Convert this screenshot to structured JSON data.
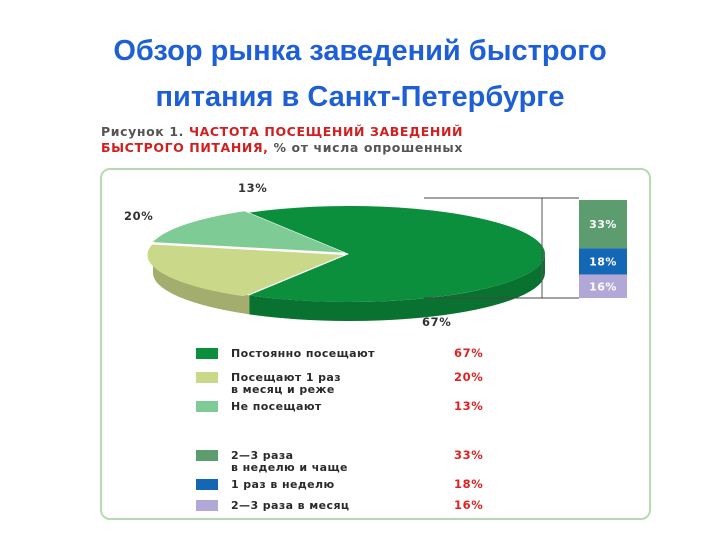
{
  "slide": {
    "title_line1": "Обзор рынка заведений быстрого",
    "title_line2": "питания в Санкт-Петербурге"
  },
  "figure": {
    "caption_prefix": "Рисунок 1.",
    "caption_accent_line1": "ЧАСТОТА ПОСЕЩЕНИЙ ЗАВЕДЕНИЙ",
    "caption_accent_line2": "БЫСТРОГО ПИТАНИЯ,",
    "caption_suffix": "% от числа опрошенных"
  },
  "chart_data": {
    "type": "pie",
    "pie": {
      "slices": [
        {
          "label": "Постоянно посещают",
          "value": 67,
          "value_label": "67%",
          "color": "#0c8f3c"
        },
        {
          "label": "Посещают 1 раз в месяц и реже",
          "label_line1": "Посещают 1 раз",
          "label_line2": "в месяц и реже",
          "value": 20,
          "value_label": "20%",
          "color": "#cad88a"
        },
        {
          "label": "Не посещают",
          "value": 13,
          "value_label": "13%",
          "color": "#7fcb95"
        }
      ]
    },
    "breakdown": {
      "of_slice": "Постоянно посещают",
      "segments": [
        {
          "label": "2—3 раза в неделю и чаще",
          "label_line1": "2—3 раза",
          "label_line2": "в неделю и чаще",
          "value": 33,
          "value_label": "33%",
          "color": "#5c9c6e"
        },
        {
          "label": "1 раз в неделю",
          "value": 18,
          "value_label": "18%",
          "color": "#1467b5"
        },
        {
          "label": "2—3 раза в месяц",
          "value": 16,
          "value_label": "16%",
          "color": "#b1a8d8"
        }
      ]
    }
  }
}
